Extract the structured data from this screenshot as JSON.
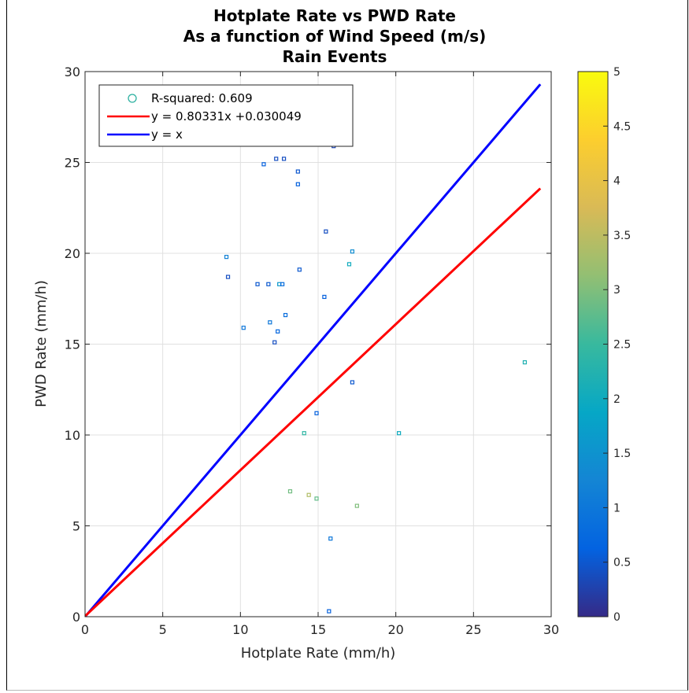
{
  "chart_data": {
    "type": "scatter",
    "title": [
      "Hotplate Rate vs PWD Rate",
      "As a function of Wind Speed (m/s)",
      "Rain Events"
    ],
    "xlabel": "Hotplate Rate (mm/h)",
    "ylabel": "PWD Rate (mm/h)",
    "xlim": [
      0,
      30
    ],
    "ylim": [
      0,
      30
    ],
    "xticks": [
      "0",
      "5",
      "10",
      "15",
      "20",
      "25",
      "30"
    ],
    "yticks": [
      "0",
      "5",
      "10",
      "15",
      "20",
      "25",
      "30"
    ],
    "grid": true,
    "legend_placement": "top-left",
    "legend": [
      {
        "label": "R-squared: 0.609",
        "marker": "circle",
        "color": "#2bb0a0"
      },
      {
        "label": "y = 0.80331x +0.030049",
        "marker": "line",
        "color": "#ff0000"
      },
      {
        "label": "y = x",
        "marker": "line",
        "color": "#0000ff"
      }
    ],
    "lines": [
      {
        "label": "y = x",
        "color": "#0000ff",
        "x": [
          0,
          29.3
        ],
        "y": [
          0,
          29.3
        ]
      },
      {
        "label": "y = 0.80331x +0.030049",
        "color": "#ff0000",
        "x": [
          0,
          29.3
        ],
        "y": [
          0.03,
          23.57
        ]
      }
    ],
    "colorbar": {
      "range": [
        0,
        5
      ],
      "ticks": [
        "0",
        "0.5",
        "1",
        "1.5",
        "2",
        "2.5",
        "3",
        "3.5",
        "4",
        "4.5",
        "5"
      ],
      "colormap": [
        "#352a87",
        "#0363e1",
        "#1485d4",
        "#06a7c6",
        "#38b99e",
        "#92bf73",
        "#d9ba56",
        "#fcce2e",
        "#f9fb0e"
      ]
    },
    "points": [
      {
        "x": 28.3,
        "y": 14.0,
        "c": 2.2
      },
      {
        "x": 20.2,
        "y": 10.1,
        "c": 2.0
      },
      {
        "x": 17.5,
        "y": 6.1,
        "c": 3.0
      },
      {
        "x": 16.0,
        "y": 25.9,
        "c": 0.3
      },
      {
        "x": 12.3,
        "y": 25.2,
        "c": 0.4
      },
      {
        "x": 12.8,
        "y": 25.2,
        "c": 0.4
      },
      {
        "x": 13.7,
        "y": 24.5,
        "c": 0.5
      },
      {
        "x": 13.7,
        "y": 23.8,
        "c": 0.6
      },
      {
        "x": 11.5,
        "y": 24.9,
        "c": 0.6
      },
      {
        "x": 15.5,
        "y": 21.2,
        "c": 0.4
      },
      {
        "x": 17.2,
        "y": 20.1,
        "c": 1.4
      },
      {
        "x": 17.0,
        "y": 19.4,
        "c": 2.0
      },
      {
        "x": 9.1,
        "y": 19.8,
        "c": 1.2
      },
      {
        "x": 9.2,
        "y": 18.7,
        "c": 0.4
      },
      {
        "x": 13.8,
        "y": 19.1,
        "c": 0.5
      },
      {
        "x": 11.1,
        "y": 18.3,
        "c": 0.5
      },
      {
        "x": 11.8,
        "y": 18.3,
        "c": 0.5
      },
      {
        "x": 12.5,
        "y": 18.3,
        "c": 1.6
      },
      {
        "x": 12.7,
        "y": 18.3,
        "c": 0.8
      },
      {
        "x": 15.4,
        "y": 17.6,
        "c": 0.6
      },
      {
        "x": 12.9,
        "y": 16.6,
        "c": 0.8
      },
      {
        "x": 11.9,
        "y": 16.2,
        "c": 1.0
      },
      {
        "x": 12.4,
        "y": 15.7,
        "c": 0.7
      },
      {
        "x": 10.2,
        "y": 15.9,
        "c": 1.0
      },
      {
        "x": 12.2,
        "y": 15.1,
        "c": 0.4
      },
      {
        "x": 15.8,
        "y": 4.3,
        "c": 1.0
      },
      {
        "x": 15.7,
        "y": 0.3,
        "c": 0.6
      },
      {
        "x": 14.9,
        "y": 11.2,
        "c": 0.6
      },
      {
        "x": 14.1,
        "y": 10.1,
        "c": 2.4
      },
      {
        "x": 17.2,
        "y": 12.9,
        "c": 0.5
      },
      {
        "x": 14.9,
        "y": 6.5,
        "c": 2.8
      },
      {
        "x": 14.4,
        "y": 6.7,
        "c": 3.4
      },
      {
        "x": 13.2,
        "y": 6.9,
        "c": 2.9
      }
    ]
  }
}
